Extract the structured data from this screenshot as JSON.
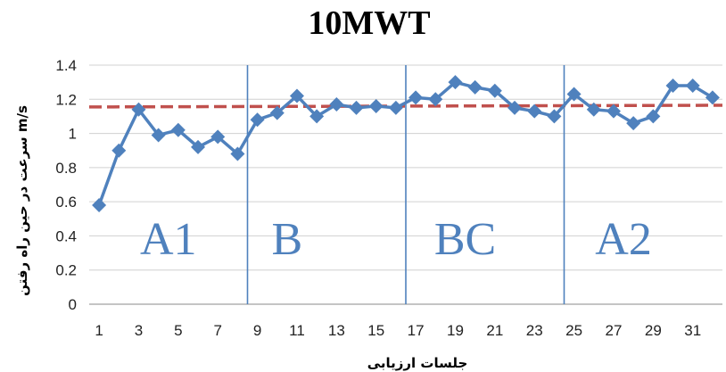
{
  "chart_data": {
    "type": "line",
    "title": "10MWT",
    "xlabel": "جلسات ارزیابی",
    "ylabel": "سرعت در حین راه رفتن m/s",
    "ylim": [
      0,
      1.4
    ],
    "yticks": [
      "0",
      "0.2",
      "0.4",
      "0.6",
      "0.8",
      "1",
      "1.2",
      "1.4"
    ],
    "xticks": [
      "1",
      "3",
      "5",
      "7",
      "9",
      "11",
      "13",
      "15",
      "17",
      "19",
      "21",
      "23",
      "25",
      "27",
      "29",
      "31"
    ],
    "x": [
      1,
      2,
      3,
      4,
      5,
      6,
      7,
      8,
      9,
      10,
      11,
      12,
      13,
      14,
      15,
      16,
      17,
      18,
      19,
      20,
      21,
      22,
      23,
      24,
      25,
      26,
      27,
      28,
      29,
      30,
      31,
      32
    ],
    "series": [
      {
        "values": [
          0.58,
          0.9,
          1.14,
          0.99,
          1.02,
          0.92,
          0.98,
          0.88,
          1.08,
          1.12,
          1.22,
          1.1,
          1.17,
          1.15,
          1.16,
          1.15,
          1.21,
          1.2,
          1.3,
          1.27,
          1.25,
          1.15,
          1.13,
          1.1,
          1.23,
          1.14,
          1.13,
          1.06,
          1.1,
          1.28,
          1.28,
          1.21
        ],
        "color": "#4f81bd"
      }
    ],
    "reference_line": {
      "y_start": 1.155,
      "y_end": 1.165,
      "color": "#c0504d",
      "style": "dashed"
    },
    "phase_dividers": [
      8,
      16,
      24
    ],
    "phase_labels": [
      {
        "text": "A1",
        "x": 4.5
      },
      {
        "text": "B",
        "x": 10.5
      },
      {
        "text": "BC",
        "x": 19.5
      },
      {
        "text": "A2",
        "x": 27.5
      }
    ],
    "grid": true,
    "legend": "none"
  }
}
